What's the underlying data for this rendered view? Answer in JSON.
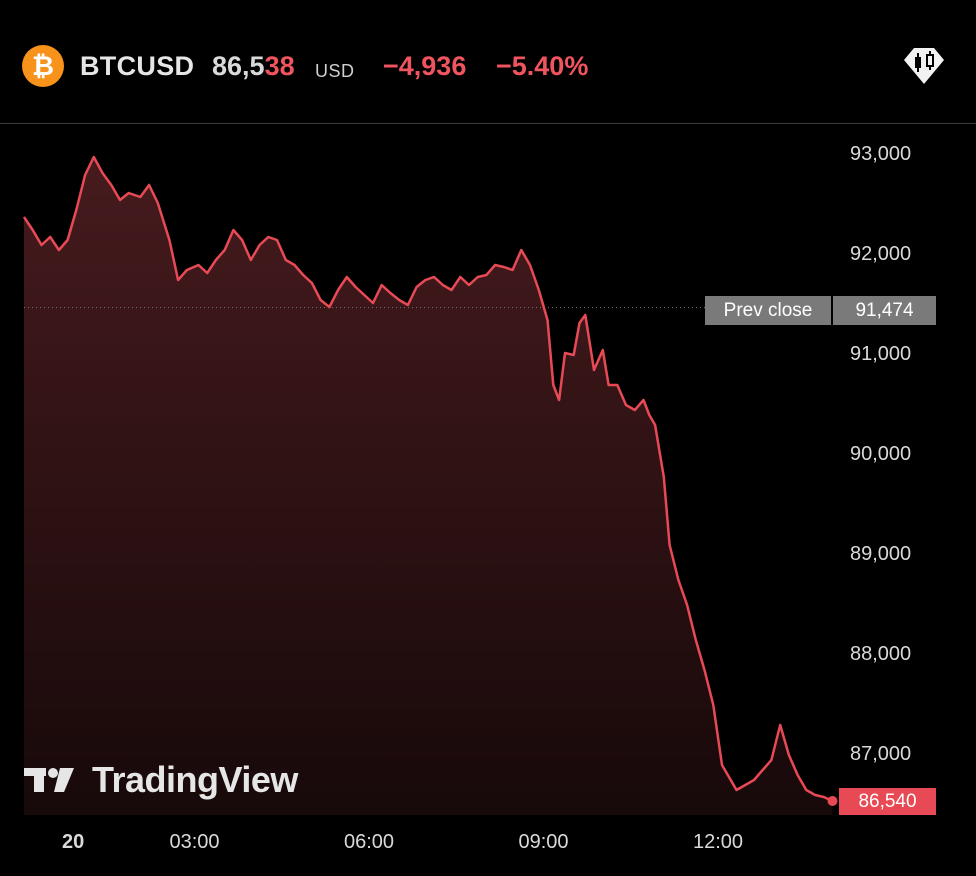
{
  "header": {
    "icon": "bitcoin-icon",
    "symbol": "BTCUSD",
    "price_main": "86,5",
    "price_tail": "38",
    "currency": "USD",
    "change": "−4,936",
    "change_pct": "−5.40%",
    "colors": {
      "negative": "#f0555f",
      "bitcoin": "#f7931a"
    }
  },
  "toolbar": {
    "chart_type_icon": "candlestick-icon"
  },
  "watermark": {
    "text": "TradingView",
    "icon": "tradingview-logo-icon"
  },
  "chart_data": {
    "type": "area",
    "xlabel": "",
    "ylabel": "",
    "x_ticks": [
      "20",
      "03:00",
      "06:00",
      "09:00",
      "12:00"
    ],
    "x_tick_hours": [
      0,
      3,
      6,
      9,
      12
    ],
    "y_ticks": [
      "93,000",
      "92,000",
      "91,000",
      "90,000",
      "89,000",
      "88,000",
      "87,000"
    ],
    "y_tick_values": [
      93000,
      92000,
      91000,
      90000,
      89000,
      88000,
      87000
    ],
    "ylim": [
      86350,
      93300
    ],
    "xlim": [
      -0.1,
      14.2
    ],
    "prev_close": {
      "label": "Prev close",
      "value": 91474,
      "value_text": "91,474"
    },
    "last": {
      "value": 86540,
      "value_text": "86,540"
    },
    "line_color": "#e84a55",
    "series": [
      {
        "x": [
          0,
          0.15,
          0.3,
          0.45,
          0.6,
          0.75,
          0.9,
          1.05,
          1.2,
          1.35,
          1.5,
          1.65,
          1.8,
          2.0,
          2.15,
          2.3,
          2.5,
          2.65,
          2.8,
          3.0,
          3.15,
          3.3,
          3.45,
          3.6,
          3.75,
          3.9,
          4.05,
          4.2,
          4.35,
          4.5,
          4.65,
          4.8,
          4.95,
          5.1,
          5.25,
          5.4,
          5.55,
          5.7,
          5.85,
          6.0,
          6.15,
          6.3,
          6.45,
          6.6,
          6.75,
          6.9,
          7.05,
          7.2,
          7.35,
          7.5,
          7.65,
          7.8,
          7.95,
          8.1,
          8.25,
          8.4,
          8.55,
          8.7,
          8.85,
          9.0,
          9.1,
          9.2,
          9.3,
          9.45,
          9.55,
          9.65,
          9.8,
          9.95,
          10.05,
          10.2,
          10.35,
          10.5,
          10.65,
          10.75,
          10.85,
          11.0,
          11.1,
          11.25,
          11.4,
          11.55,
          11.7,
          11.85,
          12.0,
          12.1,
          12.25,
          12.4,
          12.55,
          12.7,
          12.85,
          13.0,
          13.15,
          13.3,
          13.45,
          13.6,
          13.75,
          13.9
        ],
        "values": [
          92380,
          92250,
          92100,
          92180,
          92050,
          92150,
          92450,
          92800,
          92980,
          92820,
          92700,
          92550,
          92620,
          92580,
          92700,
          92520,
          92150,
          91750,
          91850,
          91900,
          91820,
          91950,
          92050,
          92250,
          92150,
          91950,
          92100,
          92180,
          92150,
          91950,
          91900,
          91800,
          91720,
          91550,
          91480,
          91650,
          91780,
          91680,
          91600,
          91520,
          91700,
          91620,
          91550,
          91500,
          91680,
          91750,
          91780,
          91700,
          91650,
          91780,
          91700,
          91780,
          91800,
          91900,
          91880,
          91850,
          92050,
          91900,
          91650,
          91350,
          90700,
          90550,
          91020,
          91000,
          91320,
          91400,
          90850,
          91050,
          90700,
          90700,
          90500,
          90450,
          90550,
          90400,
          90300,
          89780,
          89100,
          88750,
          88500,
          88150,
          87850,
          87500,
          86900,
          86800,
          86650,
          86700,
          86750,
          86850,
          86950,
          87300,
          87000,
          86800,
          86650,
          86600,
          86580,
          86540
        ]
      }
    ]
  }
}
